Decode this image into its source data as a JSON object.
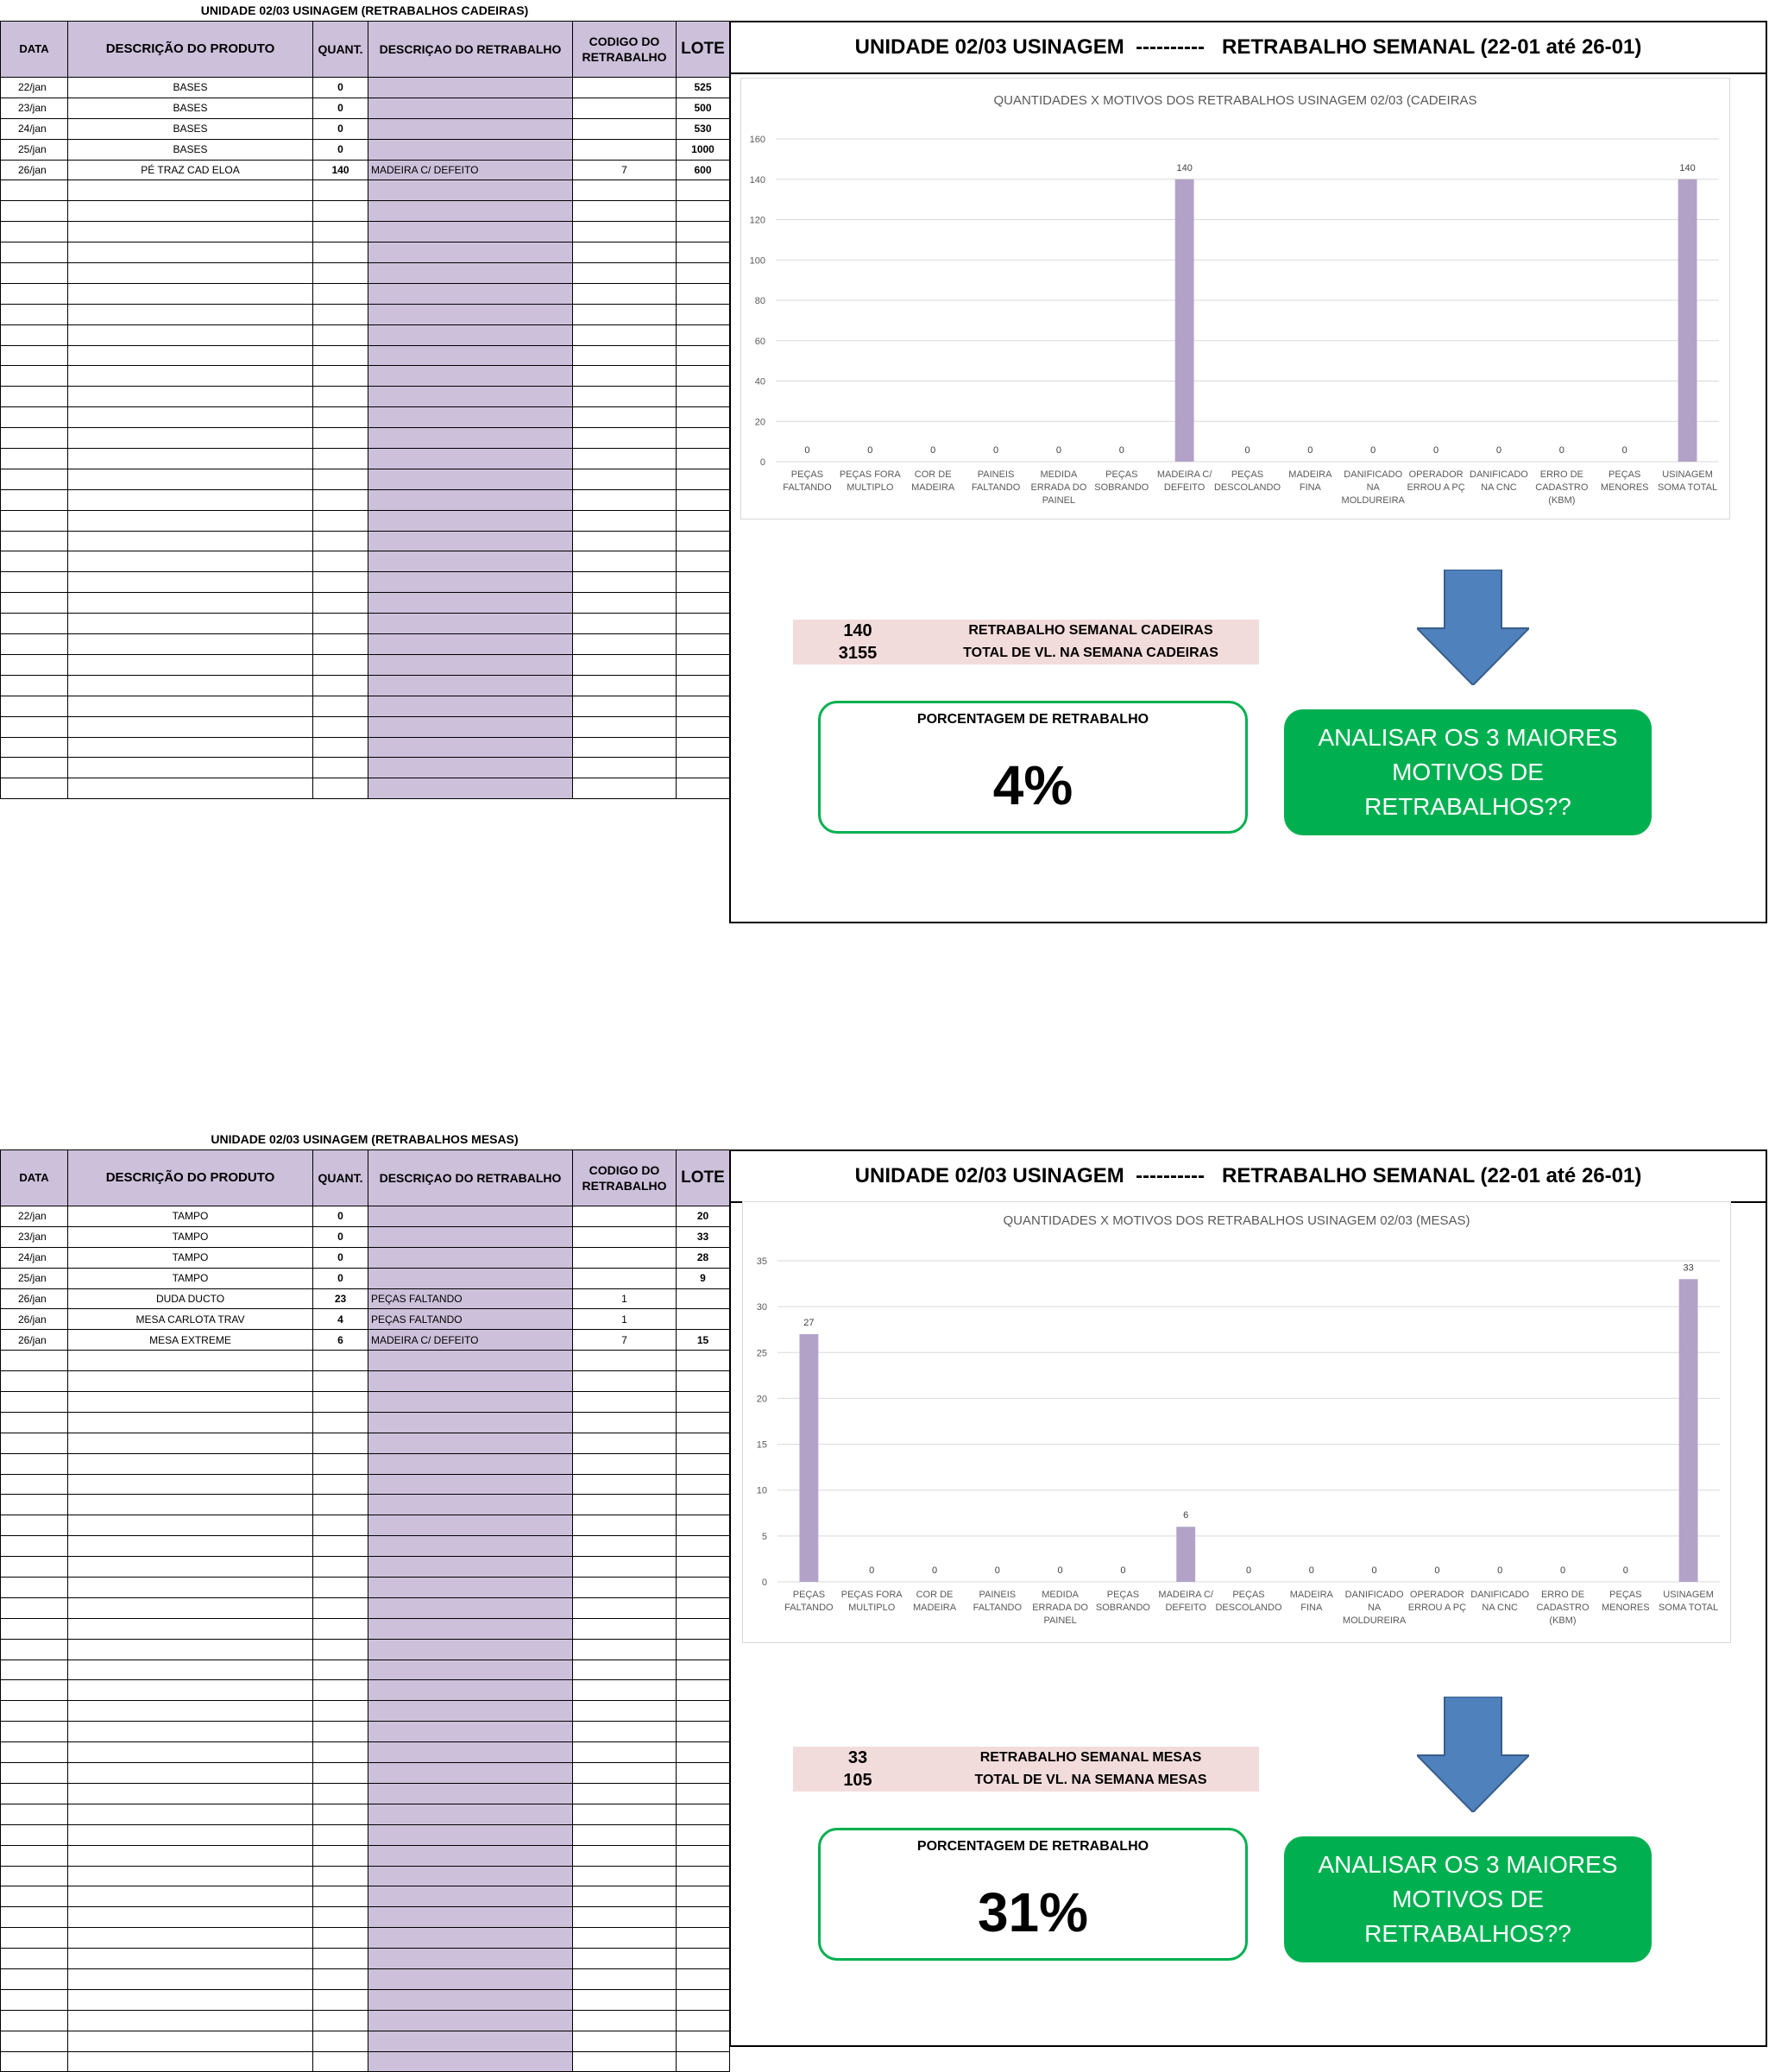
{
  "sections": [
    {
      "sheet_title": "UNIDADE 02/03 USINAGEM (RETRABALHOS CADEIRAS)",
      "columns": [
        "DATA",
        "DESCRIÇÃO DO PRODUTO",
        "QUANT.",
        "DESCRIÇAO DO RETRABALHO",
        "CODIGO DO RETRABALHO",
        "LOTE"
      ],
      "rows": [
        {
          "data": "22/jan",
          "produto": "BASES",
          "quant": "0",
          "descricao": "",
          "codigo": "",
          "lote": "525"
        },
        {
          "data": "23/jan",
          "produto": "BASES",
          "quant": "0",
          "descricao": "",
          "codigo": "",
          "lote": "500"
        },
        {
          "data": "24/jan",
          "produto": "BASES",
          "quant": "0",
          "descricao": "",
          "codigo": "",
          "lote": "530"
        },
        {
          "data": "25/jan",
          "produto": "BASES",
          "quant": "0",
          "descricao": "",
          "codigo": "",
          "lote": "1000"
        },
        {
          "data": "26/jan",
          "produto": "PÉ TRAZ CAD ELOA",
          "quant": "140",
          "descricao": "MADEIRA C/ DEFEITO",
          "codigo": "7",
          "lote": "600"
        }
      ],
      "panel_title": "UNIDADE 02/03 USINAGEM  ----------   RETRABALHO SEMANAL (22-01 até 26-01)",
      "stats": [
        {
          "value": "140",
          "label": "RETRABALHO SEMANAL CADEIRAS"
        },
        {
          "value": "3155",
          "label": "TOTAL DE VL. NA SEMANA CADEIRAS"
        }
      ],
      "pct_label": "PORCENTAGEM DE RETRABALHO",
      "pct_value": "4%",
      "action_text": "ANALISAR OS 3 MAIORES MOTIVOS DE RETRABALHOS??",
      "colors": {
        "bar": "#b3a2c7",
        "arrow": "#4f81bd",
        "action": "#00b050",
        "header": "#ccc0da",
        "stats": "#f2dcdb"
      }
    },
    {
      "sheet_title": "UNIDADE 02/03 USINAGEM (RETRABALHOS MESAS)",
      "columns": [
        "DATA",
        "DESCRIÇÃO DO PRODUTO",
        "QUANT.",
        "DESCRIÇAO DO RETRABALHO",
        "CODIGO DO RETRABALHO",
        "LOTE"
      ],
      "rows": [
        {
          "data": "22/jan",
          "produto": "TAMPO",
          "quant": "0",
          "descricao": "",
          "codigo": "",
          "lote": "20"
        },
        {
          "data": "23/jan",
          "produto": "TAMPO",
          "quant": "0",
          "descricao": "",
          "codigo": "",
          "lote": "33"
        },
        {
          "data": "24/jan",
          "produto": "TAMPO",
          "quant": "0",
          "descricao": "",
          "codigo": "",
          "lote": "28"
        },
        {
          "data": "25/jan",
          "produto": "TAMPO",
          "quant": "0",
          "descricao": "",
          "codigo": "",
          "lote": "9"
        },
        {
          "data": "26/jan",
          "produto": "DUDA DUCTO",
          "quant": "23",
          "descricao": "PEÇAS FALTANDO",
          "codigo": "1",
          "lote": ""
        },
        {
          "data": "26/jan",
          "produto": "MESA CARLOTA TRAV",
          "quant": "4",
          "descricao": "PEÇAS FALTANDO",
          "codigo": "1",
          "lote": ""
        },
        {
          "data": "26/jan",
          "produto": "MESA EXTREME",
          "quant": "6",
          "descricao": "MADEIRA C/ DEFEITO",
          "codigo": "7",
          "lote": "15"
        }
      ],
      "panel_title": "UNIDADE 02/03 USINAGEM  ----------   RETRABALHO SEMANAL (22-01 até 26-01)",
      "stats": [
        {
          "value": "33",
          "label": "RETRABALHO SEMANAL MESAS"
        },
        {
          "value": "105",
          "label": "TOTAL DE VL. NA SEMANA MESAS"
        }
      ],
      "pct_label": "PORCENTAGEM DE RETRABALHO",
      "pct_value": "31%",
      "action_text": "ANALISAR OS 3 MAIORES MOTIVOS DE RETRABALHOS??",
      "colors": {
        "bar": "#b3a2c7",
        "arrow": "#4f81bd",
        "action": "#00b050",
        "header": "#ccc0da",
        "stats": "#f2dcdb"
      }
    }
  ],
  "chart_data": [
    {
      "type": "bar",
      "title": "QUANTIDADES X MOTIVOS DOS RETRABALHOS USINAGEM 02/03 (CADEIRAS",
      "categories": [
        "PEÇAS FALTANDO",
        "PEÇAS FORA MULTIPLO",
        "COR DE MADEIRA",
        "PAINEIS FALTANDO",
        "MEDIDA ERRADA DO PAINEL",
        "PEÇAS SOBRANDO",
        "MADEIRA C/ DEFEITO",
        "PEÇAS DESCOLANDO",
        "MADEIRA FINA",
        "DANIFICADO NA MOLDUREIRA",
        "OPERADOR ERROU A PÇ",
        "DANIFICADO NA CNC",
        "ERRO DE CADASTRO (KBM)",
        "PEÇAS MENORES",
        "USINAGEM SOMA TOTAL"
      ],
      "values": [
        0,
        0,
        0,
        0,
        0,
        0,
        140,
        0,
        0,
        0,
        0,
        0,
        0,
        0,
        140
      ],
      "yticks": [
        0,
        20,
        40,
        60,
        80,
        100,
        120,
        140,
        160
      ],
      "ylim": [
        0,
        160
      ],
      "grid": true,
      "legend": "none"
    },
    {
      "type": "bar",
      "title": "QUANTIDADES X MOTIVOS DOS RETRABALHOS USINAGEM 02/03 (MESAS)",
      "categories": [
        "PEÇAS FALTANDO",
        "PEÇAS FORA MULTIPLO",
        "COR DE MADEIRA",
        "PAINEIS FALTANDO",
        "MEDIDA ERRADA DO PAINEL",
        "PEÇAS SOBRANDO",
        "MADEIRA C/ DEFEITO",
        "PEÇAS DESCOLANDO",
        "MADEIRA FINA",
        "DANIFICADO NA MOLDUREIRA",
        "OPERADOR ERROU A PÇ",
        "DANIFICADO NA CNC",
        "ERRO DE CADASTRO (KBM)",
        "PEÇAS MENORES",
        "USINAGEM SOMA TOTAL"
      ],
      "values": [
        27,
        0,
        0,
        0,
        0,
        0,
        6,
        0,
        0,
        0,
        0,
        0,
        0,
        0,
        33
      ],
      "yticks": [
        0,
        5,
        10,
        15,
        20,
        25,
        30,
        35
      ],
      "ylim": [
        0,
        35
      ],
      "grid": true,
      "legend": "none"
    }
  ]
}
